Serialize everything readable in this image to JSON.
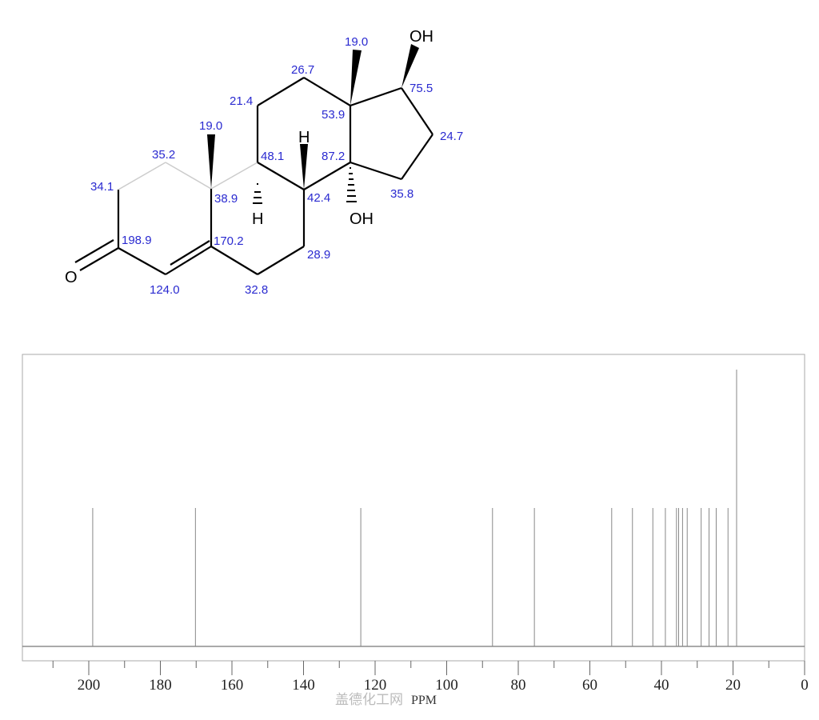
{
  "molecule": {
    "atoms": {
      "O3": "O",
      "OH17": "OH",
      "OH14": "OH",
      "H8": "H",
      "H9": "H"
    },
    "shift_labels": {
      "C1": "35.2",
      "C2": "34.1",
      "C3": "198.9",
      "C4": "124.0",
      "C5": "170.2",
      "C6": "32.8",
      "C7": "28.9",
      "C8": "42.4",
      "C9": "48.1",
      "C10": "38.9",
      "C11": "21.4",
      "C12": "26.7",
      "C13": "53.9",
      "C14": "87.2",
      "C15": "35.8",
      "C16": "24.7",
      "C17": "75.5",
      "C18": "19.0",
      "C19": "19.0"
    }
  },
  "chart_data": {
    "type": "stick",
    "xlabel": "PPM",
    "xlim": [
      218.5,
      0
    ],
    "x_reversed": true,
    "xticks": [
      200,
      180,
      160,
      140,
      120,
      100,
      80,
      60,
      40,
      20,
      0
    ],
    "minor_ticks": [
      210,
      190,
      170,
      150,
      130,
      110,
      90,
      70,
      50,
      30,
      10
    ],
    "peaks": [
      {
        "ppm": 198.9,
        "intensity": 1
      },
      {
        "ppm": 170.2,
        "intensity": 1
      },
      {
        "ppm": 124.0,
        "intensity": 1
      },
      {
        "ppm": 87.2,
        "intensity": 1
      },
      {
        "ppm": 75.5,
        "intensity": 1
      },
      {
        "ppm": 53.9,
        "intensity": 1
      },
      {
        "ppm": 48.1,
        "intensity": 1
      },
      {
        "ppm": 42.4,
        "intensity": 1
      },
      {
        "ppm": 38.9,
        "intensity": 1
      },
      {
        "ppm": 35.8,
        "intensity": 1
      },
      {
        "ppm": 35.2,
        "intensity": 1
      },
      {
        "ppm": 34.1,
        "intensity": 1
      },
      {
        "ppm": 32.8,
        "intensity": 1
      },
      {
        "ppm": 28.9,
        "intensity": 1
      },
      {
        "ppm": 26.7,
        "intensity": 1
      },
      {
        "ppm": 24.7,
        "intensity": 1
      },
      {
        "ppm": 21.4,
        "intensity": 1
      },
      {
        "ppm": 19.0,
        "intensity": 2
      }
    ],
    "peak_color": "#888888"
  },
  "watermark": "盖德化工网"
}
